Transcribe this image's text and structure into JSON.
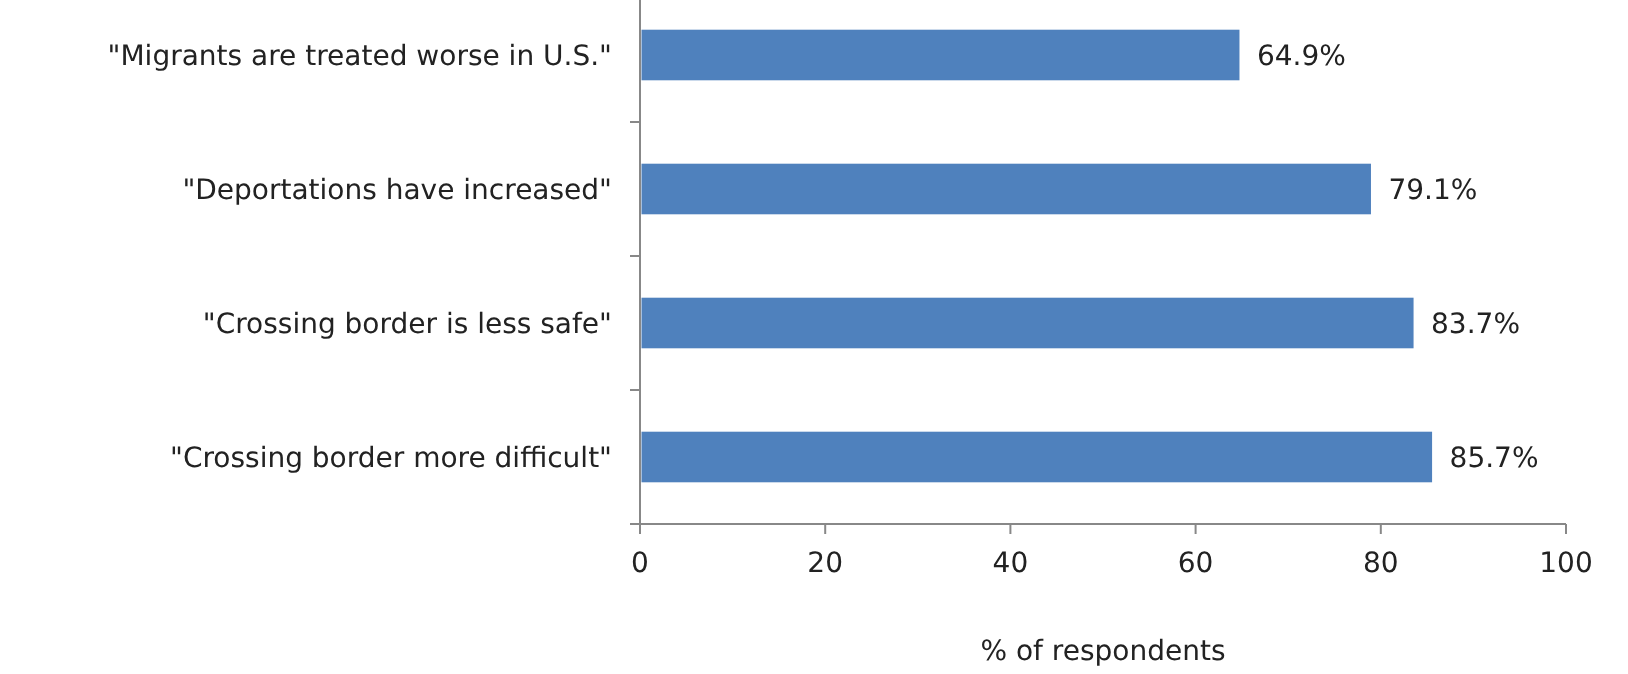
{
  "chart_data": {
    "type": "bar",
    "orientation": "horizontal",
    "categories": [
      "\"Migrants are treated worse in U.S.\"",
      "\"Deportations have increased\"",
      "\"Crossing border is less safe\"",
      "\"Crossing border more difficult\""
    ],
    "values": [
      64.9,
      79.1,
      83.7,
      85.7
    ],
    "value_labels": [
      "64.9%",
      "79.1%",
      "83.7%",
      "85.7%"
    ],
    "color": "#4f81bd",
    "xlabel": "% of respondents",
    "xlim": [
      0,
      100
    ],
    "xticks": [
      0,
      20,
      40,
      60,
      80,
      100
    ],
    "grid": false
  }
}
